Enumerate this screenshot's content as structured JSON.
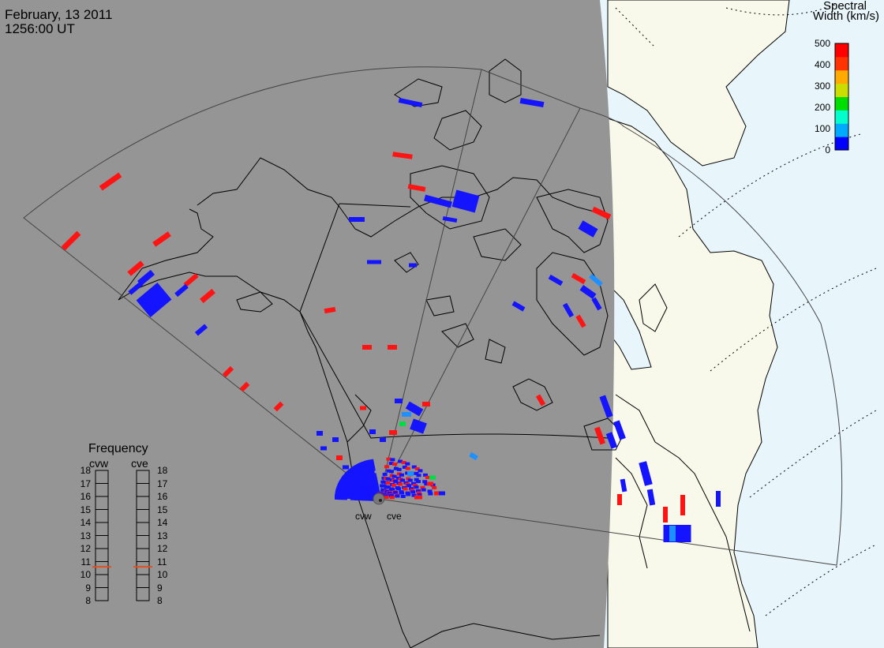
{
  "header": {
    "date": "February, 13 2011",
    "time": "1256:00 UT"
  },
  "colorbar": {
    "title_line1": "Spectral",
    "title_line2": "Width (km/s)",
    "ticks": [
      "500",
      "400",
      "300",
      "200",
      "100",
      "0"
    ],
    "tick_values": [
      500,
      400,
      300,
      200,
      100,
      0
    ],
    "range": [
      0,
      500
    ],
    "colors": [
      "#0000ff",
      "#00aaff",
      "#00ffcc",
      "#00dd00",
      "#ccdd00",
      "#ffaa00",
      "#ff3300",
      "#ff0000"
    ]
  },
  "frequency_panel": {
    "title": "Frequency",
    "radars": [
      "cvw",
      "cve"
    ],
    "scale_values": [
      "18",
      "17",
      "16",
      "15",
      "14",
      "13",
      "12",
      "11",
      "10",
      "9",
      "8"
    ],
    "range_mhz": [
      8,
      18
    ],
    "cvw_mhz": 10.6,
    "cve_mhz": 10.6,
    "marker_color": "#e05020"
  },
  "sites": {
    "west_label": "cvw",
    "east_label": "cve"
  },
  "colors": {
    "night": "#959595",
    "day_land": "#f8f8eb",
    "day_ocean": "#e8f6fc",
    "coast": "#000000",
    "scatter_low": "#1414ff",
    "scatter_high": "#ff1414",
    "scatter_mid": "#1e90ff",
    "scatter_green": "#00dd44"
  }
}
